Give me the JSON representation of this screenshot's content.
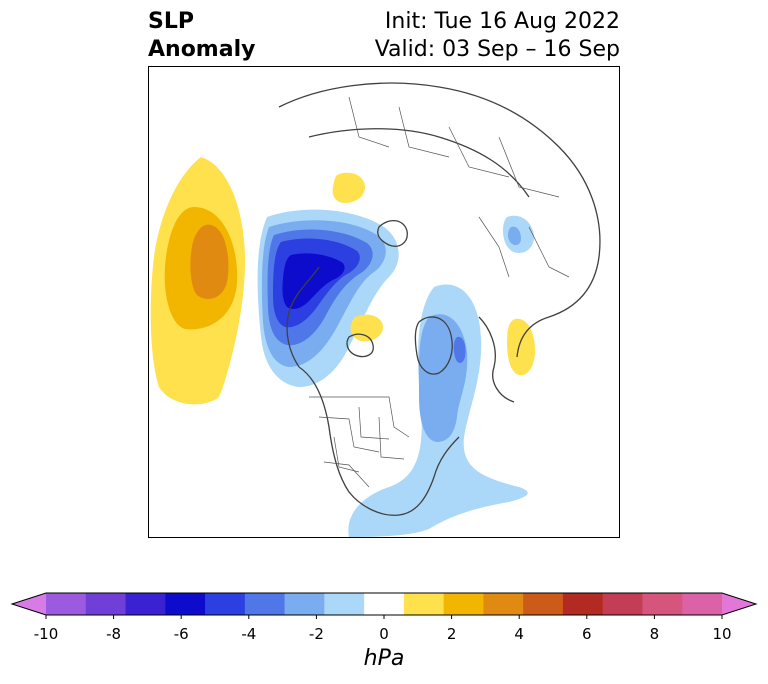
{
  "title": {
    "left_line1": "SLP",
    "left_line2": "Anomaly",
    "right_line1": "Init: Tue 16 Aug 2022",
    "right_line2": "Valid: 03 Sep – 16 Sep"
  },
  "colorbar": {
    "unit": "hPa",
    "ticks": [
      "-10",
      "-8",
      "-6",
      "-4",
      "-2",
      "0",
      "2",
      "4",
      "6",
      "8",
      "10"
    ],
    "colors": [
      "#d77be6",
      "#9c5ae0",
      "#6f3fd8",
      "#3a22d2",
      "#0d0ccc",
      "#2c3fe0",
      "#5077e8",
      "#7aadf0",
      "#abd8f8",
      "#ffffff",
      "#ffe14d",
      "#f2b500",
      "#e08a12",
      "#cc5a18",
      "#b22a22",
      "#c53d55",
      "#d6557c",
      "#dc62a8",
      "#e277d8"
    ],
    "extend": "both"
  },
  "map": {
    "projection": "north-polar-stereographic",
    "features": [
      "coastlines",
      "country borders",
      "US state borders"
    ],
    "anomaly_colors": {
      "neg_light": "#abd8f8",
      "neg_mid": "#7aadf0",
      "neg_strong": "#5077e8",
      "neg_stronger": "#2c3fe0",
      "neg_max": "#0d0ccc",
      "pos_light": "#ffe14d",
      "pos_mid": "#f2b500",
      "pos_strong": "#e08a12"
    }
  }
}
